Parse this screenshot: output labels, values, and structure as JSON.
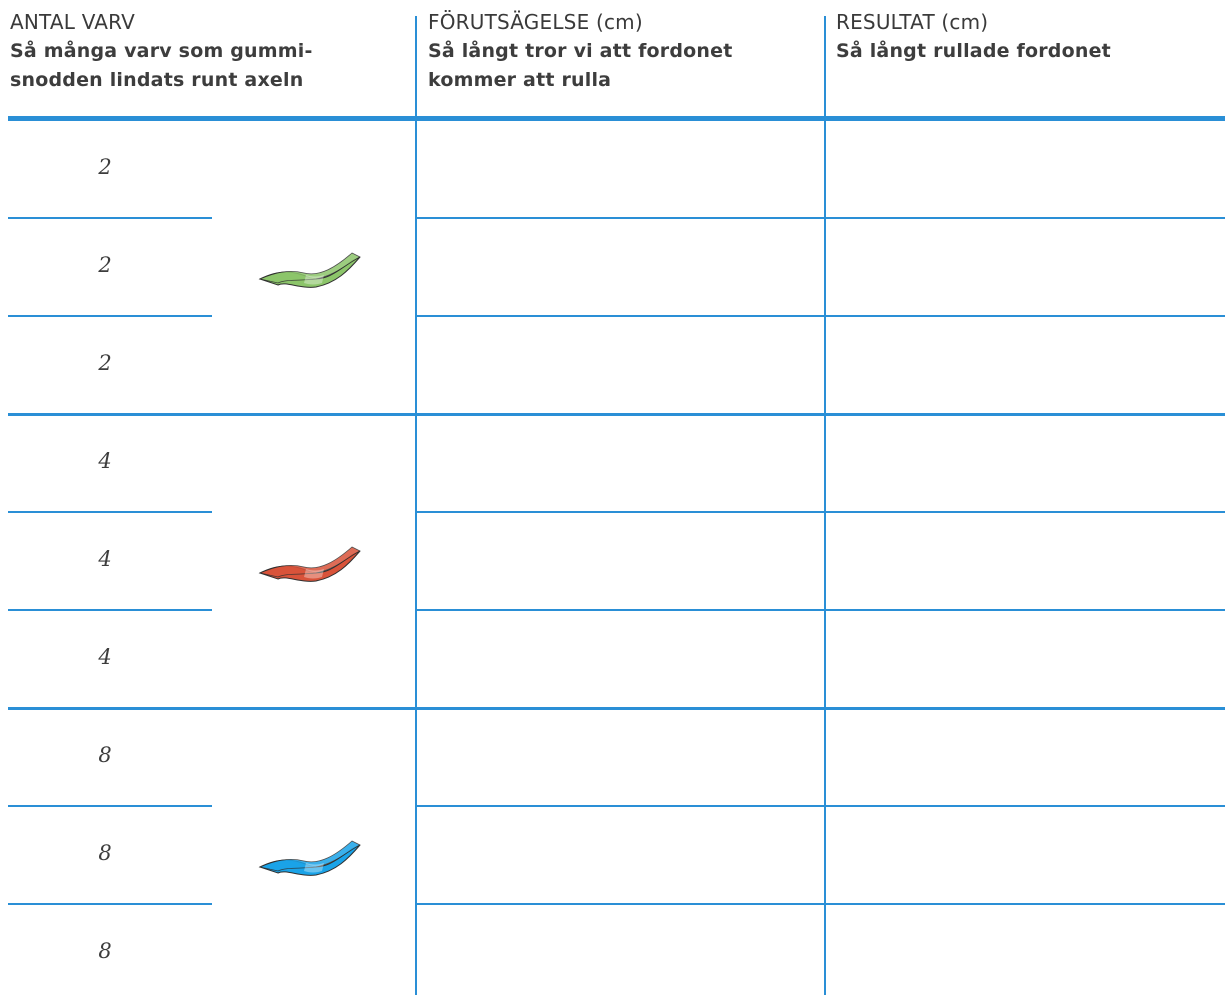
{
  "headers": [
    {
      "title": "ANTAL VARV",
      "subtitle": "Så många varv som gummi-\nsnodden lindats runt axeln"
    },
    {
      "title": "FÖRUTSÄGELSE (cm)",
      "subtitle": "Så långt tror vi att fordonet\nkommer att rulla"
    },
    {
      "title": "RESULTAT (cm)",
      "subtitle": "Så långt rullade fordonet"
    }
  ],
  "rows": [
    {
      "turns": "2",
      "prediction": "",
      "result": ""
    },
    {
      "turns": "2",
      "prediction": "",
      "result": ""
    },
    {
      "turns": "2",
      "prediction": "",
      "result": ""
    },
    {
      "turns": "4",
      "prediction": "",
      "result": ""
    },
    {
      "turns": "4",
      "prediction": "",
      "result": ""
    },
    {
      "turns": "4",
      "prediction": "",
      "result": ""
    },
    {
      "turns": "8",
      "prediction": "",
      "result": ""
    },
    {
      "turns": "8",
      "prediction": "",
      "result": ""
    },
    {
      "turns": "8",
      "prediction": "",
      "result": ""
    }
  ],
  "bands": [
    {
      "icon": "green-rubber-band-icon",
      "color": "#8cc56a"
    },
    {
      "icon": "red-rubber-band-icon",
      "color": "#d9533a"
    },
    {
      "icon": "blue-rubber-band-icon",
      "color": "#1aa3e8"
    }
  ],
  "colors": {
    "rule": "#2a8fd6",
    "text": "#3d3d3d"
  }
}
